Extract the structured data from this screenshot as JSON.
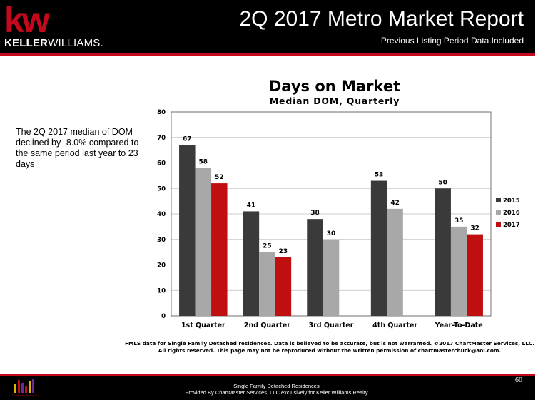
{
  "header": {
    "logo_text": "kw",
    "brand_bold": "KELLER",
    "brand_rest": "WILLIAMS.",
    "title": "2Q 2017 Metro Market Report",
    "subtitle": "Previous Listing Period Data Included"
  },
  "commentary": "The 2Q 2017 median of DOM declined by -8.0% compared to the same period last year to 23 days",
  "chart_data": {
    "type": "bar",
    "title": "Days on Market",
    "subtitle": "Median DOM, Quarterly",
    "categories": [
      "1st Quarter",
      "2nd Quarter",
      "3rd Quarter",
      "4th Quarter",
      "Year-To-Date"
    ],
    "series": [
      {
        "name": "2015",
        "color": "#3a3a3a",
        "values": [
          67,
          41,
          38,
          53,
          50
        ]
      },
      {
        "name": "2016",
        "color": "#a8a8a8",
        "values": [
          58,
          25,
          30,
          42,
          35
        ]
      },
      {
        "name": "2017",
        "color": "#c00f0f",
        "values": [
          52,
          23,
          null,
          null,
          32
        ]
      }
    ],
    "ylim": [
      0,
      80
    ],
    "yticks": [
      "0",
      "10",
      "20",
      "30",
      "40",
      "50",
      "60",
      "70",
      "80"
    ],
    "grid": true,
    "legend": "right"
  },
  "source_note": {
    "line1": "FMLS data for Single Family Detached residences.  Data is believed to be accurate, but is not warranted.  ©2017  ChartMaster Services, LLC.",
    "line2": "All rights reserved. This page may not be reproduced without the written permission of chartmasterchuck@aol.com."
  },
  "footer": {
    "line1": "Single Family Detached Residences",
    "line2": "Provided By ChartMaster Services, LLC exclusively for Keller Williams Realty",
    "page": "60",
    "logo_caption": "ChartMaster Services, LLC"
  }
}
